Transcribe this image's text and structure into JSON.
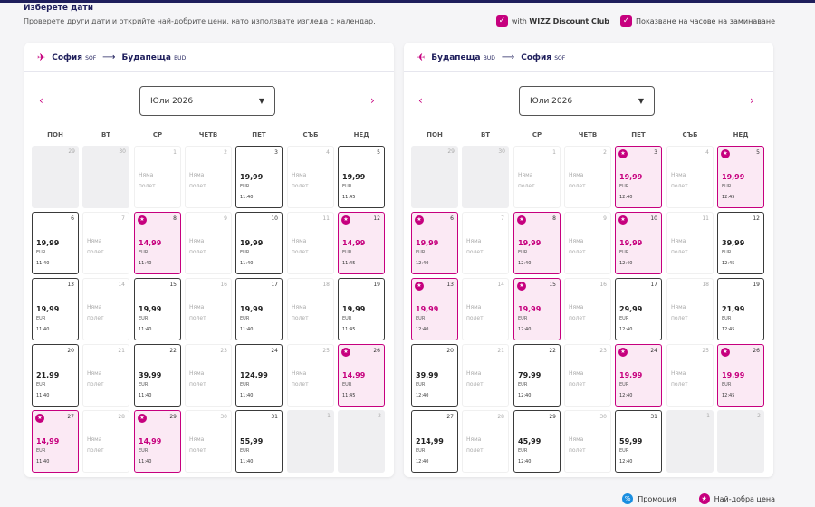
{
  "header": {
    "title": "Изберете дати",
    "subtitle": "Проверете други дати и открийте най-добрите цени, като използвате изгледа с календар.",
    "option_discount_club": "with",
    "option_discount_club_brand": "WIZZ Discount Club",
    "option_show_times": "Показване на часове на заминаване"
  },
  "weekdays": [
    "ПОН",
    "ВТ",
    "СР",
    "ЧЕТВ",
    "ПЕТ",
    "СЪБ",
    "НЕД"
  ],
  "no_flight_line1": "Няма",
  "no_flight_line2": "полет",
  "currency": "EUR",
  "legend": {
    "promo": "Промоция",
    "best_price": "Най-добра цена"
  },
  "colors": {
    "accent": "#c6007e",
    "navy": "#1f1f5c",
    "promo": "#1a8ee0"
  },
  "panels": [
    {
      "from_city": "София",
      "from_code": "SOF",
      "to_city": "Будапеща",
      "to_code": "BUD",
      "month": "Юли 2026",
      "days": [
        {
          "d": "29",
          "t": "other"
        },
        {
          "d": "30",
          "t": "other"
        },
        {
          "d": "1",
          "t": "none"
        },
        {
          "d": "2",
          "t": "none"
        },
        {
          "d": "3",
          "t": "flight",
          "p": "19,99",
          "tm": "11:40"
        },
        {
          "d": "4",
          "t": "none"
        },
        {
          "d": "5",
          "t": "flight",
          "p": "19,99",
          "tm": "11:45"
        },
        {
          "d": "6",
          "t": "flight",
          "p": "19,99",
          "tm": "11:40"
        },
        {
          "d": "7",
          "t": "none"
        },
        {
          "d": "8",
          "t": "best",
          "p": "14,99",
          "tm": "11:40"
        },
        {
          "d": "9",
          "t": "none"
        },
        {
          "d": "10",
          "t": "flight",
          "p": "19,99",
          "tm": "11:40"
        },
        {
          "d": "11",
          "t": "none"
        },
        {
          "d": "12",
          "t": "best",
          "p": "14,99",
          "tm": "11:45"
        },
        {
          "d": "13",
          "t": "flight",
          "p": "19,99",
          "tm": "11:40"
        },
        {
          "d": "14",
          "t": "none"
        },
        {
          "d": "15",
          "t": "flight",
          "p": "19,99",
          "tm": "11:40"
        },
        {
          "d": "16",
          "t": "none"
        },
        {
          "d": "17",
          "t": "flight",
          "p": "19,99",
          "tm": "11:40"
        },
        {
          "d": "18",
          "t": "none"
        },
        {
          "d": "19",
          "t": "flight",
          "p": "19,99",
          "tm": "11:45"
        },
        {
          "d": "20",
          "t": "flight",
          "p": "21,99",
          "tm": "11:40"
        },
        {
          "d": "21",
          "t": "none"
        },
        {
          "d": "22",
          "t": "flight",
          "p": "39,99",
          "tm": "11:40"
        },
        {
          "d": "23",
          "t": "none"
        },
        {
          "d": "24",
          "t": "flight",
          "p": "124,99",
          "tm": "11:40"
        },
        {
          "d": "25",
          "t": "none"
        },
        {
          "d": "26",
          "t": "best",
          "p": "14,99",
          "tm": "11:45"
        },
        {
          "d": "27",
          "t": "best",
          "p": "14,99",
          "tm": "11:40"
        },
        {
          "d": "28",
          "t": "none"
        },
        {
          "d": "29",
          "t": "best",
          "p": "14,99",
          "tm": "11:40"
        },
        {
          "d": "30",
          "t": "none"
        },
        {
          "d": "31",
          "t": "flight",
          "p": "55,99",
          "tm": "11:40"
        },
        {
          "d": "1",
          "t": "other"
        },
        {
          "d": "2",
          "t": "other"
        }
      ]
    },
    {
      "from_city": "Будапеща",
      "from_code": "BUD",
      "to_city": "София",
      "to_code": "SOF",
      "month": "Юли 2026",
      "days": [
        {
          "d": "29",
          "t": "other"
        },
        {
          "d": "30",
          "t": "other"
        },
        {
          "d": "1",
          "t": "none"
        },
        {
          "d": "2",
          "t": "none"
        },
        {
          "d": "3",
          "t": "best",
          "p": "19,99",
          "tm": "12:40"
        },
        {
          "d": "4",
          "t": "none"
        },
        {
          "d": "5",
          "t": "best",
          "p": "19,99",
          "tm": "12:45"
        },
        {
          "d": "6",
          "t": "best",
          "p": "19,99",
          "tm": "12:40"
        },
        {
          "d": "7",
          "t": "none"
        },
        {
          "d": "8",
          "t": "best",
          "p": "19,99",
          "tm": "12:40"
        },
        {
          "d": "9",
          "t": "none"
        },
        {
          "d": "10",
          "t": "best",
          "p": "19,99",
          "tm": "12:40"
        },
        {
          "d": "11",
          "t": "none"
        },
        {
          "d": "12",
          "t": "flight",
          "p": "39,99",
          "tm": "12:45"
        },
        {
          "d": "13",
          "t": "best",
          "p": "19,99",
          "tm": "12:40"
        },
        {
          "d": "14",
          "t": "none"
        },
        {
          "d": "15",
          "t": "best",
          "p": "19,99",
          "tm": "12:40"
        },
        {
          "d": "16",
          "t": "none"
        },
        {
          "d": "17",
          "t": "flight",
          "p": "29,99",
          "tm": "12:40"
        },
        {
          "d": "18",
          "t": "none"
        },
        {
          "d": "19",
          "t": "flight",
          "p": "21,99",
          "tm": "12:45"
        },
        {
          "d": "20",
          "t": "flight",
          "p": "39,99",
          "tm": "12:40"
        },
        {
          "d": "21",
          "t": "none"
        },
        {
          "d": "22",
          "t": "flight",
          "p": "79,99",
          "tm": "12:40"
        },
        {
          "d": "23",
          "t": "none"
        },
        {
          "d": "24",
          "t": "best",
          "p": "19,99",
          "tm": "12:40"
        },
        {
          "d": "25",
          "t": "none"
        },
        {
          "d": "26",
          "t": "best",
          "p": "19,99",
          "tm": "12:45"
        },
        {
          "d": "27",
          "t": "flight",
          "p": "214,99",
          "tm": "12:40"
        },
        {
          "d": "28",
          "t": "none"
        },
        {
          "d": "29",
          "t": "flight",
          "p": "45,99",
          "tm": "12:40"
        },
        {
          "d": "30",
          "t": "none"
        },
        {
          "d": "31",
          "t": "flight",
          "p": "59,99",
          "tm": "12:40"
        },
        {
          "d": "1",
          "t": "other"
        },
        {
          "d": "2",
          "t": "other"
        }
      ]
    }
  ]
}
